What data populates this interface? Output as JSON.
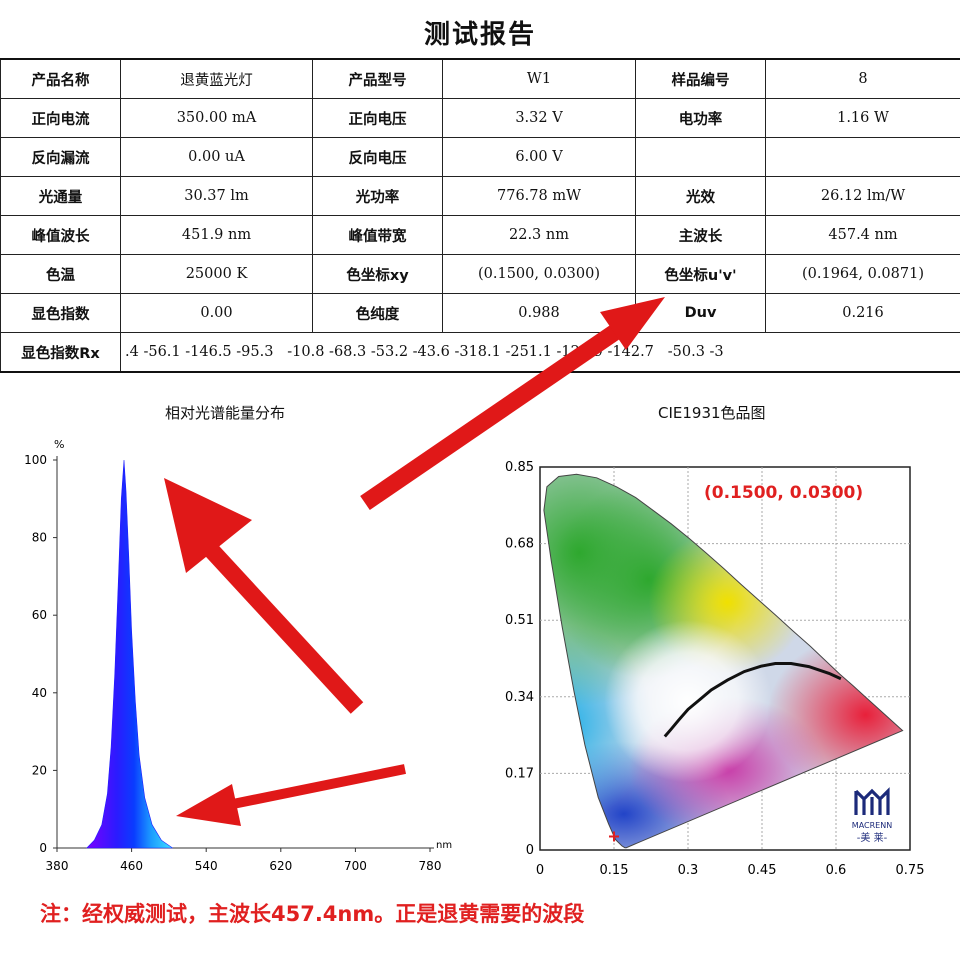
{
  "report": {
    "title": "测试报告",
    "rows": [
      [
        {
          "label": "产品名称"
        },
        {
          "value": "退黄蓝光灯"
        },
        {
          "label": "产品型号"
        },
        {
          "value": "W1"
        },
        {
          "label": "样品编号"
        },
        {
          "value": "8"
        }
      ],
      [
        {
          "label": "正向电流"
        },
        {
          "value": "350.00 mA"
        },
        {
          "label": "正向电压"
        },
        {
          "value": "3.32 V"
        },
        {
          "label": "电功率"
        },
        {
          "value": "1.16 W"
        }
      ],
      [
        {
          "label": "反向漏流"
        },
        {
          "value": "0.00 uA"
        },
        {
          "label": "反向电压"
        },
        {
          "value": "6.00 V"
        },
        {
          "label": ""
        },
        {
          "value": ""
        }
      ],
      [
        {
          "label": "光通量"
        },
        {
          "value": "30.37 lm"
        },
        {
          "label": "光功率"
        },
        {
          "value": "776.78 mW"
        },
        {
          "label": "光效"
        },
        {
          "value": "26.12 lm/W"
        }
      ],
      [
        {
          "label": "峰值波长"
        },
        {
          "value": "451.9 nm"
        },
        {
          "label": "峰值带宽"
        },
        {
          "value": "22.3 nm"
        },
        {
          "label": "主波长"
        },
        {
          "value": "457.4 nm"
        }
      ],
      [
        {
          "label": "色温"
        },
        {
          "value": "25000 K"
        },
        {
          "label": "色坐标xy"
        },
        {
          "value": "(0.1500, 0.0300)"
        },
        {
          "label": "色坐标u'v'"
        },
        {
          "value": "(0.1964, 0.0871)"
        }
      ],
      [
        {
          "label": "显色指数"
        },
        {
          "value": "0.00"
        },
        {
          "label": "色纯度"
        },
        {
          "value": "0.988"
        },
        {
          "label": "Duv"
        },
        {
          "value": "0.216"
        }
      ]
    ],
    "rx_label": "显色指数Rx",
    "rx_values": ".4 -56.1 -146.5 -95.3   -10.8 -68.3 -53.2 -43.6 -318.1 -251.1 -129.9 -142.7   -50.3 -3"
  },
  "chart_data": [
    {
      "type": "area",
      "title": "相对光谱能量分布",
      "ylabel": "%",
      "xlabel": "nm",
      "xlim": [
        380,
        780
      ],
      "ylim": [
        0,
        100
      ],
      "xticks": [
        380,
        460,
        540,
        620,
        700,
        780
      ],
      "yticks": [
        0,
        20,
        40,
        60,
        80,
        100
      ],
      "x": [
        412,
        420,
        428,
        434,
        438,
        442,
        446,
        449,
        451.9,
        454,
        457,
        460,
        464,
        468,
        474,
        482,
        492,
        504
      ],
      "y": [
        0,
        2,
        6,
        14,
        26,
        45,
        70,
        90,
        100,
        92,
        75,
        56,
        38,
        24,
        13,
        6,
        2,
        0
      ]
    },
    {
      "type": "scatter",
      "title": "CIE1931色品图",
      "xlim": [
        0,
        0.75
      ],
      "ylim": [
        0,
        0.85
      ],
      "xticks": [
        "0",
        "0.15",
        "0.3",
        "0.45",
        "0.6",
        "0.75"
      ],
      "yticks": [
        "0",
        "0.17",
        "0.34",
        "0.51",
        "0.68",
        "0.85"
      ],
      "point": {
        "x": 0.15,
        "y": 0.03,
        "label": "(0.1500, 0.0300)"
      },
      "locus": [
        [
          0.175,
          0.005
        ],
        [
          0.172,
          0.005
        ],
        [
          0.166,
          0.009
        ],
        [
          0.153,
          0.023
        ],
        [
          0.139,
          0.058
        ],
        [
          0.118,
          0.117
        ],
        [
          0.091,
          0.233
        ],
        [
          0.069,
          0.352
        ],
        [
          0.045,
          0.495
        ],
        [
          0.023,
          0.641
        ],
        [
          0.008,
          0.754
        ],
        [
          0.014,
          0.806
        ],
        [
          0.038,
          0.829
        ],
        [
          0.074,
          0.834
        ],
        [
          0.115,
          0.826
        ],
        [
          0.155,
          0.806
        ],
        [
          0.194,
          0.782
        ],
        [
          0.229,
          0.754
        ],
        [
          0.266,
          0.724
        ],
        [
          0.302,
          0.692
        ],
        [
          0.337,
          0.659
        ],
        [
          0.373,
          0.624
        ],
        [
          0.408,
          0.589
        ],
        [
          0.444,
          0.554
        ],
        [
          0.479,
          0.52
        ],
        [
          0.512,
          0.487
        ],
        [
          0.548,
          0.452
        ],
        [
          0.579,
          0.42
        ],
        [
          0.608,
          0.39
        ],
        [
          0.634,
          0.365
        ],
        [
          0.658,
          0.341
        ],
        [
          0.735,
          0.265
        ]
      ],
      "planckian": [
        [
          0.253,
          0.252
        ],
        [
          0.265,
          0.267
        ],
        [
          0.281,
          0.288
        ],
        [
          0.3,
          0.312
        ],
        [
          0.323,
          0.333
        ],
        [
          0.347,
          0.355
        ],
        [
          0.38,
          0.377
        ],
        [
          0.414,
          0.396
        ],
        [
          0.448,
          0.408
        ],
        [
          0.477,
          0.414
        ],
        [
          0.509,
          0.414
        ],
        [
          0.545,
          0.407
        ],
        [
          0.586,
          0.392
        ],
        [
          0.61,
          0.38
        ]
      ],
      "marker_color": "#e02020",
      "logo": {
        "brand": "MACRENN",
        "subtitle": "-美 莱-"
      }
    }
  ],
  "note": "注：经权威测试，主波长457.4nm。正是退黄需要的波段",
  "colors": {
    "accent_red": "#e01818",
    "label_red": "#e02020"
  }
}
